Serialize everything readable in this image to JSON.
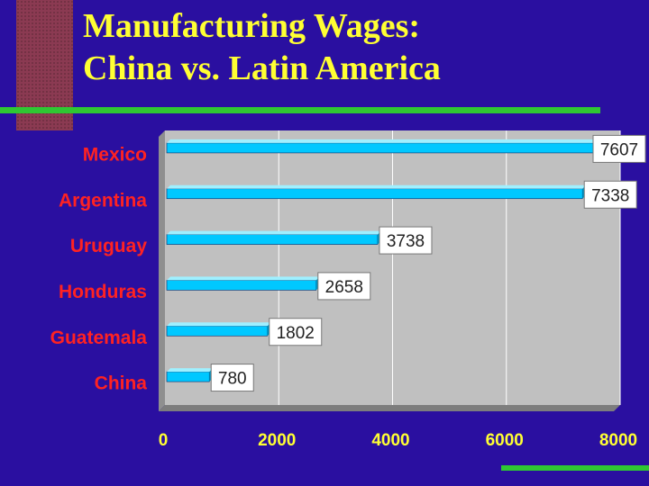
{
  "slide": {
    "title_line1": "Manufacturing Wages:",
    "title_line2": "China vs. Latin America"
  },
  "colors": {
    "background": "#2a0fa0",
    "title": "#ffff33",
    "plot_area": "#c0c0c0",
    "bar": "#00c8ff",
    "category_label": "#ff2222",
    "tick_label": "#ffff33",
    "accent_rule": "#2fc733",
    "decor_square": "#8b3a52"
  },
  "chart_data": {
    "type": "bar",
    "orientation": "horizontal",
    "title": "",
    "xlabel": "",
    "ylabel": "",
    "categories": [
      "Mexico",
      "Argentina",
      "Uruguay",
      "Honduras",
      "Guatemala",
      "China"
    ],
    "values": [
      7607,
      7338,
      3738,
      2658,
      1802,
      780
    ],
    "data_labels": [
      "7607",
      "7338",
      "3738",
      "2658",
      "1802",
      "780"
    ],
    "xlim": [
      0,
      8000
    ],
    "xticks": [
      0,
      2000,
      4000,
      6000,
      8000
    ],
    "xtick_labels": [
      "0",
      "2000",
      "4000",
      "6000",
      "8000"
    ],
    "grid": "vertical",
    "legend": "none"
  }
}
